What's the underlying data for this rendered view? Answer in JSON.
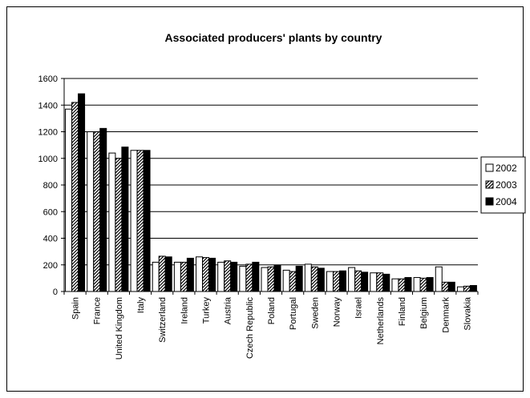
{
  "chart_data": {
    "type": "bar",
    "title": "Associated producers' plants by country",
    "xlabel": "",
    "ylabel": "",
    "ylim": [
      0,
      1600
    ],
    "yticks": [
      0,
      200,
      400,
      600,
      800,
      1000,
      1200,
      1400,
      1600
    ],
    "grid": true,
    "legend": "right",
    "categories": [
      "Spain",
      "France",
      "United Kingdom",
      "Italy",
      "Switzerland",
      "Ireland",
      "Turkey",
      "Austria",
      "Czech Republic",
      "Poland",
      "Portugal",
      "Sweden",
      "Norway",
      "Israel",
      "Netherlands",
      "Finland",
      "Belgium",
      "Denmark",
      "Slovakia"
    ],
    "series": [
      {
        "name": "2002",
        "pattern": "white",
        "values": [
          1370,
          1200,
          1040,
          1060,
          220,
          220,
          260,
          220,
          190,
          180,
          160,
          205,
          150,
          180,
          140,
          95,
          105,
          185,
          35
        ]
      },
      {
        "name": "2003",
        "pattern": "hatch",
        "values": [
          1420,
          1200,
          1000,
          1060,
          265,
          220,
          255,
          230,
          205,
          185,
          150,
          185,
          150,
          155,
          140,
          95,
          100,
          70,
          40
        ]
      },
      {
        "name": "2004",
        "pattern": "black",
        "values": [
          1485,
          1225,
          1085,
          1060,
          260,
          250,
          250,
          220,
          220,
          195,
          190,
          175,
          155,
          145,
          130,
          105,
          105,
          70,
          45
        ]
      }
    ]
  }
}
